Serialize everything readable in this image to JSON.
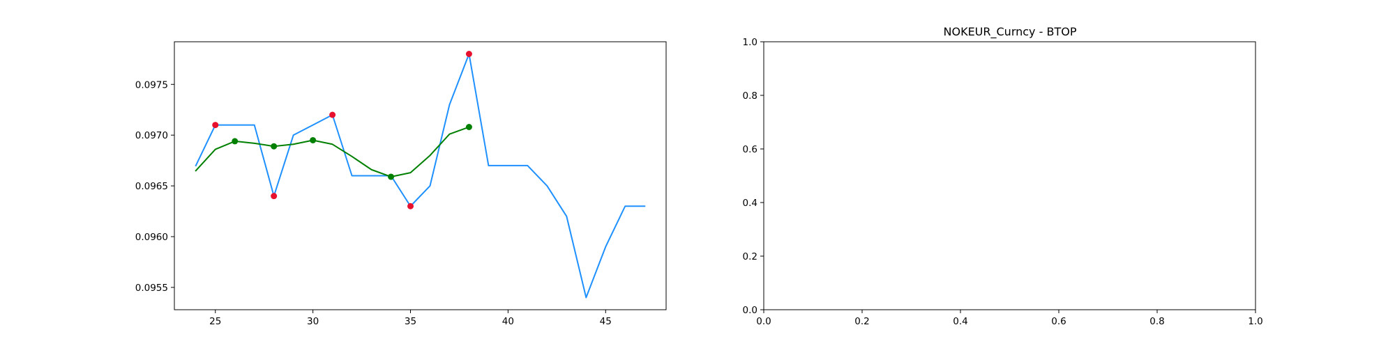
{
  "chart_data": [
    {
      "type": "line",
      "title": "",
      "xlabel": "",
      "ylabel": "",
      "xlim": [
        22.9,
        48.1
      ],
      "ylim": [
        0.09528,
        0.09792
      ],
      "xticks": [
        25,
        30,
        35,
        40,
        45
      ],
      "xtick_labels": [
        "25",
        "30",
        "35",
        "40",
        "45"
      ],
      "yticks": [
        0.0955,
        0.096,
        0.0965,
        0.097,
        0.0975
      ],
      "ytick_labels": [
        "0.0955",
        "0.0960",
        "0.0965",
        "0.0970",
        "0.0975"
      ],
      "grid": false,
      "series": [
        {
          "kind": "line",
          "color": "#1e90ff",
          "x": [
            24,
            25,
            26,
            27,
            28,
            29,
            30,
            31,
            32,
            33,
            34,
            35,
            36,
            37,
            38,
            39,
            40,
            41,
            42,
            43,
            44,
            45,
            46,
            47
          ],
          "y": [
            0.0967,
            0.0971,
            0.0971,
            0.0971,
            0.0964,
            0.097,
            0.0971,
            0.0972,
            0.0966,
            0.0966,
            0.0966,
            0.0963,
            0.0965,
            0.0973,
            0.0978,
            0.0967,
            0.0967,
            0.0967,
            0.0965,
            0.0962,
            0.0954,
            0.0959,
            0.0963,
            0.0963
          ]
        },
        {
          "kind": "line",
          "color": "#008000",
          "x": [
            24,
            25,
            26,
            27,
            28,
            29,
            30,
            31,
            32,
            33,
            34,
            35,
            36,
            37,
            38
          ],
          "y": [
            0.09665,
            0.09686,
            0.09694,
            0.09692,
            0.09689,
            0.09691,
            0.09695,
            0.09691,
            0.09679,
            0.09666,
            0.09659,
            0.09663,
            0.0968,
            0.09701,
            0.09708
          ]
        },
        {
          "kind": "scatter",
          "color": "#e8112d",
          "x": [
            25,
            28,
            31,
            35,
            38
          ],
          "y": [
            0.0971,
            0.0964,
            0.0972,
            0.0963,
            0.0978
          ]
        },
        {
          "kind": "scatter",
          "color": "#008000",
          "x": [
            26,
            28,
            30,
            34,
            38
          ],
          "y": [
            0.09694,
            0.09689,
            0.09695,
            0.09659,
            0.09708
          ]
        }
      ]
    },
    {
      "type": "line",
      "title": "NOKEUR_Curncy - BTOP",
      "xlabel": "",
      "ylabel": "",
      "xlim": [
        0.0,
        1.0
      ],
      "ylim": [
        0.0,
        1.0
      ],
      "xticks": [
        0.0,
        0.2,
        0.4,
        0.6,
        0.8,
        1.0
      ],
      "xtick_labels": [
        "0.0",
        "0.2",
        "0.4",
        "0.6",
        "0.8",
        "1.0"
      ],
      "yticks": [
        0.0,
        0.2,
        0.4,
        0.6,
        0.8,
        1.0
      ],
      "ytick_labels": [
        "0.0",
        "0.2",
        "0.4",
        "0.6",
        "0.8",
        "1.0"
      ],
      "grid": false,
      "series": []
    }
  ]
}
